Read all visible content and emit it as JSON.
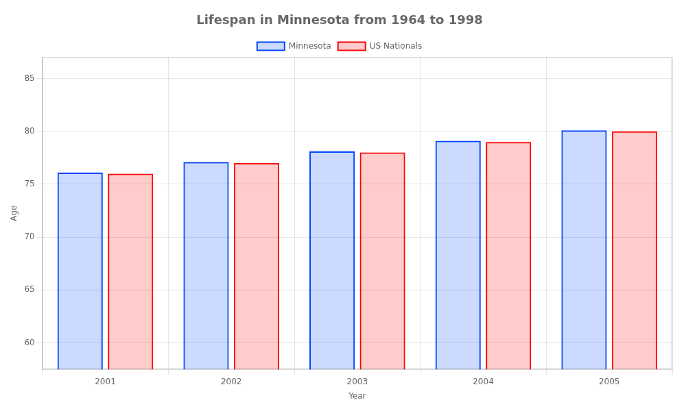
{
  "chart_data": {
    "type": "bar",
    "title": "Lifespan in Minnesota from 1964 to 1998",
    "xlabel": "Year",
    "ylabel": "Age",
    "categories": [
      "2001",
      "2002",
      "2003",
      "2004",
      "2005"
    ],
    "series": [
      {
        "name": "Minnesota",
        "color": "#0044ff",
        "values": [
          76.1,
          77.1,
          78.1,
          79.1,
          80.1
        ]
      },
      {
        "name": "US Nationals",
        "color": "#ff0000",
        "values": [
          76.0,
          77.0,
          78.0,
          79.0,
          80.0
        ]
      }
    ],
    "ylim": [
      57.5,
      87
    ],
    "yticks": [
      60,
      65,
      70,
      75,
      80,
      85
    ],
    "grid": true,
    "legend": "top"
  }
}
